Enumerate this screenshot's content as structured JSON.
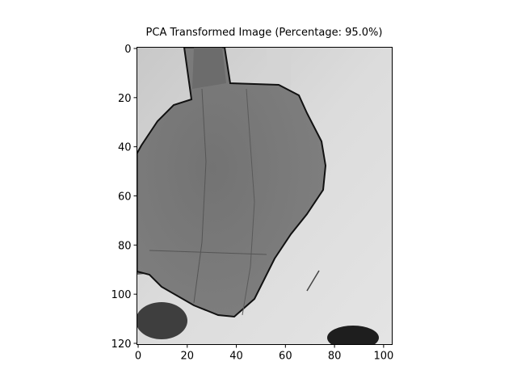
{
  "chart_data": {
    "type": "image",
    "title": "PCA Transformed Image (Percentage: 95.0%)",
    "xlim": [
      -0.5,
      103.5
    ],
    "ylim": [
      120.5,
      -0.5
    ],
    "xticks": [
      0,
      20,
      40,
      60,
      80,
      100
    ],
    "yticks": [
      0,
      20,
      40,
      60,
      80,
      100,
      120
    ]
  }
}
